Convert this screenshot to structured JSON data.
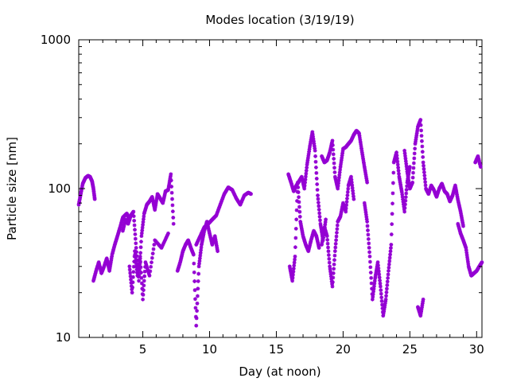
{
  "chart_data": {
    "type": "scatter",
    "title": "Modes location (3/19/19)",
    "xlabel": "Day (at noon)",
    "ylabel": "Particle size [nm]",
    "xlim": [
      0.2,
      30.4
    ],
    "ylim": [
      10,
      1000
    ],
    "yscale": "log",
    "x_ticks": [
      5,
      10,
      15,
      20,
      25,
      30
    ],
    "x_tick_labels": [
      "5",
      "10",
      "15",
      "20",
      "25",
      "30"
    ],
    "y_ticks": [
      10,
      100,
      1000
    ],
    "y_tick_labels": [
      "10",
      "100",
      "1000"
    ],
    "grid": false,
    "legend": "none",
    "marker": "asterisk",
    "color": "#9400d3",
    "series": [
      {
        "segments": [
          {
            "x": [
              0.2,
              0.35,
              0.5,
              0.7,
              0.9,
              1.05,
              1.2,
              1.3,
              1.4
            ],
            "y": [
              78,
              92,
              108,
              118,
              122,
              120,
              112,
              100,
              85
            ]
          },
          {
            "x": [
              1.3,
              1.5,
              1.7,
              1.9,
              2.1,
              2.3,
              2.5,
              2.7,
              2.9,
              3.1,
              3.3,
              3.5,
              3.8,
              4.0
            ],
            "y": [
              24,
              28,
              32,
              27,
              30,
              34,
              28,
              36,
              42,
              48,
              55,
              64,
              68,
              62
            ]
          },
          {
            "x": [
              3.5,
              3.7,
              3.9,
              4.1,
              4.3,
              4.5,
              4.7,
              4.9,
              5.1,
              5.3,
              5.5,
              5.7,
              5.9,
              6.1,
              6.3,
              6.5,
              6.7,
              6.9,
              7.1,
              7.3
            ],
            "y": [
              52,
              62,
              58,
              66,
              70,
              40,
              24,
              48,
              68,
              78,
              82,
              88,
              72,
              92,
              86,
              80,
              96,
              98,
              125,
              58
            ]
          },
          {
            "x": [
              4.0,
              4.2,
              4.4,
              4.6,
              4.8,
              5.0,
              5.2,
              5.5,
              5.9,
              6.4,
              6.9
            ],
            "y": [
              30,
              20,
              38,
              26,
              35,
              18,
              32,
              26,
              45,
              40,
              50
            ]
          },
          {
            "x": [
              7.6,
              7.8,
              8.0,
              8.2,
              8.4,
              8.6,
              8.8,
              9.0,
              9.2,
              9.4,
              9.6,
              9.8,
              10.0,
              10.2,
              10.4,
              10.6
            ],
            "y": [
              28,
              32,
              38,
              42,
              45,
              40,
              36,
              12,
              30,
              42,
              52,
              60,
              50,
              42,
              48,
              38
            ]
          },
          {
            "x": [
              9.0,
              9.3,
              9.6,
              9.9,
              10.2,
              10.5,
              10.8,
              11.1,
              11.4,
              11.7,
              12.0,
              12.3,
              12.6,
              12.9,
              13.1
            ],
            "y": [
              42,
              48,
              55,
              58,
              62,
              66,
              78,
              92,
              102,
              98,
              86,
              78,
              90,
              94,
              92
            ]
          },
          {
            "x": [
              15.9,
              16.1,
              16.3,
              16.5,
              16.7,
              16.9,
              17.1,
              17.3,
              17.5,
              17.7,
              17.9,
              18.1,
              18.3,
              18.5,
              18.7
            ],
            "y": [
              125,
              110,
              96,
              105,
              112,
              120,
              100,
              145,
              190,
              240,
              180,
              90,
              58,
              45,
              62
            ]
          },
          {
            "x": [
              16.0,
              16.2,
              16.4,
              16.6,
              16.8,
              17.0,
              17.2,
              17.4,
              17.6,
              17.8,
              18.0,
              18.2
            ],
            "y": [
              30,
              24,
              35,
              110,
              60,
              48,
              42,
              38,
              45,
              52,
              48,
              40
            ]
          },
          {
            "x": [
              18.4,
              18.6,
              18.8,
              19.0,
              19.2,
              19.4,
              19.6,
              19.8,
              20.0,
              20.2,
              20.4,
              20.6,
              20.8,
              21.0,
              21.2,
              21.4,
              21.6,
              21.8
            ],
            "y": [
              165,
              150,
              155,
              175,
              210,
              120,
              100,
              140,
              185,
              190,
              200,
              210,
              230,
              245,
              235,
              180,
              140,
              110
            ]
          },
          {
            "x": [
              18.4,
              18.6,
              18.8,
              19.0,
              19.2,
              19.4,
              19.6,
              19.8,
              20.0,
              20.2,
              20.4,
              20.6,
              20.8
            ],
            "y": [
              42,
              55,
              48,
              30,
              22,
              38,
              60,
              65,
              80,
              70,
              105,
              120,
              85
            ]
          },
          {
            "x": [
              21.6,
              21.8,
              22.0,
              22.2,
              22.4,
              22.6,
              22.8,
              23.0,
              23.2,
              23.4,
              23.6,
              23.8,
              24.0,
              24.2,
              24.4,
              24.6,
              24.8,
              25.0
            ],
            "y": [
              80,
              60,
              35,
              18,
              25,
              32,
              22,
              14,
              18,
              28,
              42,
              150,
              175,
              120,
              95,
              70,
              110,
              140
            ]
          },
          {
            "x": [
              24.6,
              24.8,
              25.0,
              25.2,
              25.4,
              25.6,
              25.8,
              26.0,
              26.2,
              26.4,
              26.6,
              26.8,
              27.0,
              27.2,
              27.4,
              27.6,
              27.8,
              28.0,
              28.2,
              28.4,
              28.6,
              28.8,
              29.0
            ],
            "y": [
              180,
              130,
              100,
              110,
              200,
              260,
              290,
              150,
              100,
              92,
              105,
              98,
              88,
              100,
              108,
              96,
              92,
              82,
              90,
              105,
              84,
              70,
              56
            ]
          },
          {
            "x": [
              25.6,
              25.8,
              26.0
            ],
            "y": [
              16,
              14,
              18
            ]
          },
          {
            "x": [
              28.6,
              28.8,
              29.0,
              29.2,
              29.4,
              29.6,
              29.8,
              30.0,
              30.2,
              30.4
            ],
            "y": [
              58,
              50,
              45,
              40,
              30,
              26,
              27,
              28,
              30,
              32
            ]
          },
          {
            "x": [
              29.9,
              30.1,
              30.3
            ],
            "y": [
              150,
              165,
              140
            ]
          }
        ]
      }
    ]
  }
}
